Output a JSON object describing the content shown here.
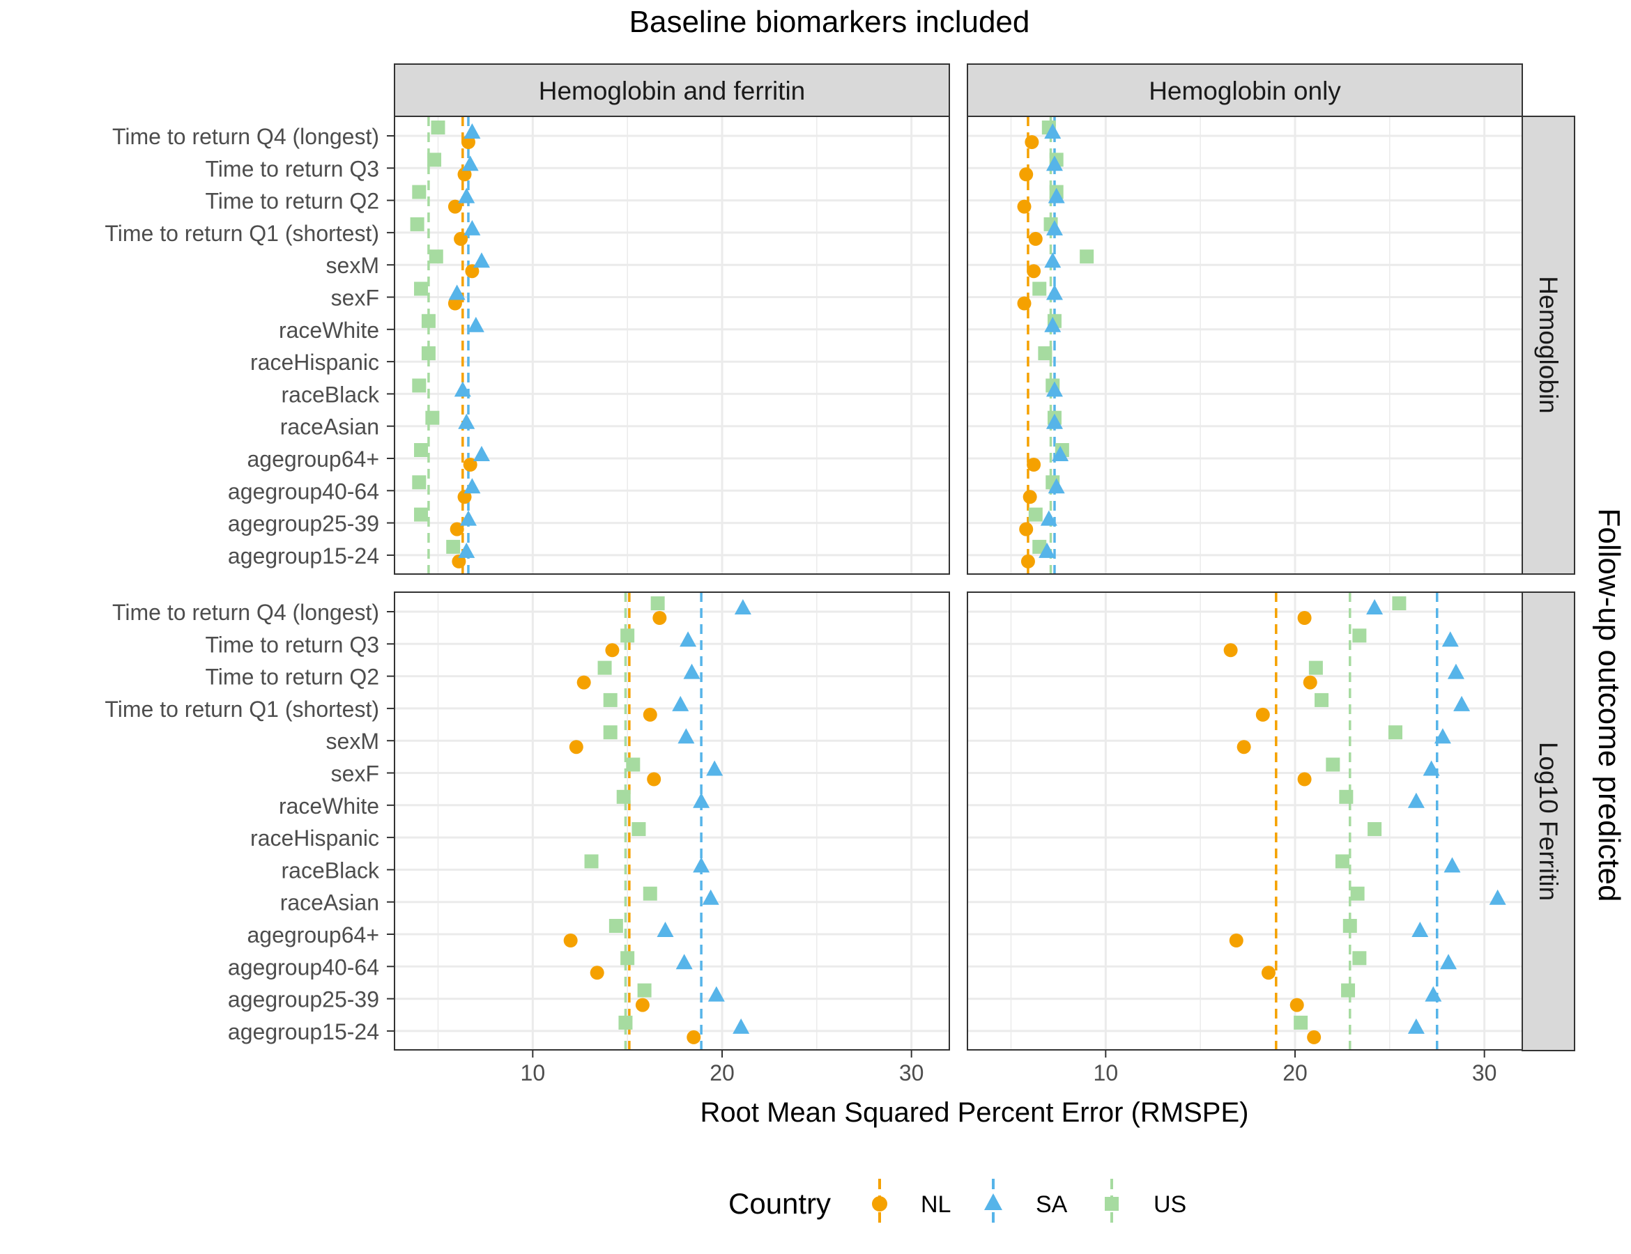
{
  "title": "Baseline biomarkers included",
  "right_title": "Follow-up outcome predicted",
  "xlabel": "Root Mean Squared Percent Error (RMSPE)",
  "col_strips": [
    "Hemoglobin and ferritin",
    "Hemoglobin only"
  ],
  "row_strips": [
    "Hemoglobin",
    "Log10 Ferritin"
  ],
  "x_ticks": [
    "10",
    "20",
    "30"
  ],
  "legend": {
    "title": "Country",
    "items": [
      {
        "label": "NL",
        "color": "#F5A100",
        "shape": "circle"
      },
      {
        "label": "SA",
        "color": "#56B4E9",
        "shape": "triangle"
      },
      {
        "label": "US",
        "color": "#A6DBA0",
        "shape": "square"
      }
    ]
  },
  "chart_data": {
    "type": "scatter",
    "title": "Baseline biomarkers included",
    "xlabel": "Root Mean Squared Percent Error (RMSPE)",
    "ylabel": "",
    "xlim": [
      2.7,
      32
    ],
    "x_ticks": [
      10,
      20,
      30
    ],
    "grid": true,
    "legend_position": "bottom",
    "categories": [
      "Time to return Q4 (longest)",
      "Time to return Q3",
      "Time to return Q2",
      "Time to return Q1 (shortest)",
      "sexM",
      "sexF",
      "raceWhite",
      "raceHispanic",
      "raceBlack",
      "raceAsian",
      "agegroup64+",
      "agegroup40-64",
      "agegroup25-39",
      "agegroup15-24"
    ],
    "series_names": [
      "NL",
      "SA",
      "US"
    ],
    "panels": [
      {
        "col": "Hemoglobin and ferritin",
        "row": "Hemoglobin",
        "reference_lines": {
          "NL": 6.3,
          "SA": 6.6,
          "US": 4.5
        },
        "values": {
          "NL": [
            6.6,
            6.4,
            5.9,
            6.2,
            6.8,
            5.9,
            null,
            null,
            null,
            null,
            6.7,
            6.4,
            6.0,
            6.1
          ],
          "SA": [
            6.8,
            6.7,
            6.5,
            6.8,
            7.3,
            6.0,
            7.0,
            null,
            6.3,
            6.5,
            7.3,
            6.8,
            6.6,
            6.5
          ],
          "US": [
            5.0,
            4.8,
            4.0,
            3.9,
            4.9,
            4.1,
            4.5,
            4.5,
            4.0,
            4.7,
            4.1,
            4.0,
            4.1,
            5.8
          ]
        }
      },
      {
        "col": "Hemoglobin only",
        "row": "Hemoglobin",
        "reference_lines": {
          "NL": 5.9,
          "SA": 7.3,
          "US": 7.1
        },
        "values": {
          "NL": [
            6.1,
            5.8,
            5.7,
            6.3,
            6.2,
            5.7,
            null,
            null,
            null,
            null,
            6.2,
            6.0,
            5.8,
            5.9
          ],
          "SA": [
            7.2,
            7.3,
            7.4,
            7.3,
            7.2,
            7.3,
            7.2,
            null,
            7.3,
            7.3,
            7.6,
            7.4,
            7.0,
            6.9
          ],
          "US": [
            7.0,
            7.4,
            7.4,
            7.1,
            9.0,
            6.5,
            7.3,
            6.8,
            7.2,
            7.3,
            7.7,
            7.2,
            6.3,
            6.5
          ]
        }
      },
      {
        "col": "Hemoglobin and ferritin",
        "row": "Log10 Ferritin",
        "reference_lines": {
          "NL": 15.1,
          "SA": 18.9,
          "US": 14.9
        },
        "values": {
          "NL": [
            16.7,
            14.2,
            12.7,
            16.2,
            12.3,
            16.4,
            null,
            null,
            null,
            null,
            12.0,
            13.4,
            15.8,
            18.5
          ],
          "SA": [
            21.1,
            18.2,
            18.4,
            17.8,
            18.1,
            19.6,
            18.9,
            null,
            18.9,
            19.4,
            17.0,
            18.0,
            19.7,
            21.0
          ],
          "US": [
            16.6,
            15.0,
            13.8,
            14.1,
            14.1,
            15.3,
            14.8,
            15.6,
            13.1,
            16.2,
            14.4,
            15.0,
            15.9,
            14.9
          ]
        }
      },
      {
        "col": "Hemoglobin only",
        "row": "Log10 Ferritin",
        "reference_lines": {
          "NL": 19.0,
          "SA": 27.5,
          "US": 22.9
        },
        "values": {
          "NL": [
            20.5,
            16.6,
            20.8,
            18.3,
            17.3,
            20.5,
            null,
            null,
            null,
            null,
            16.9,
            18.6,
            20.1,
            21.0
          ],
          "SA": [
            24.2,
            28.2,
            28.5,
            28.8,
            27.8,
            27.2,
            26.4,
            null,
            28.3,
            30.7,
            26.6,
            28.1,
            27.3,
            26.4
          ],
          "US": [
            25.5,
            23.4,
            21.1,
            21.4,
            25.3,
            22.0,
            22.7,
            24.2,
            22.5,
            23.3,
            22.9,
            23.4,
            22.8,
            20.3
          ]
        }
      }
    ]
  }
}
